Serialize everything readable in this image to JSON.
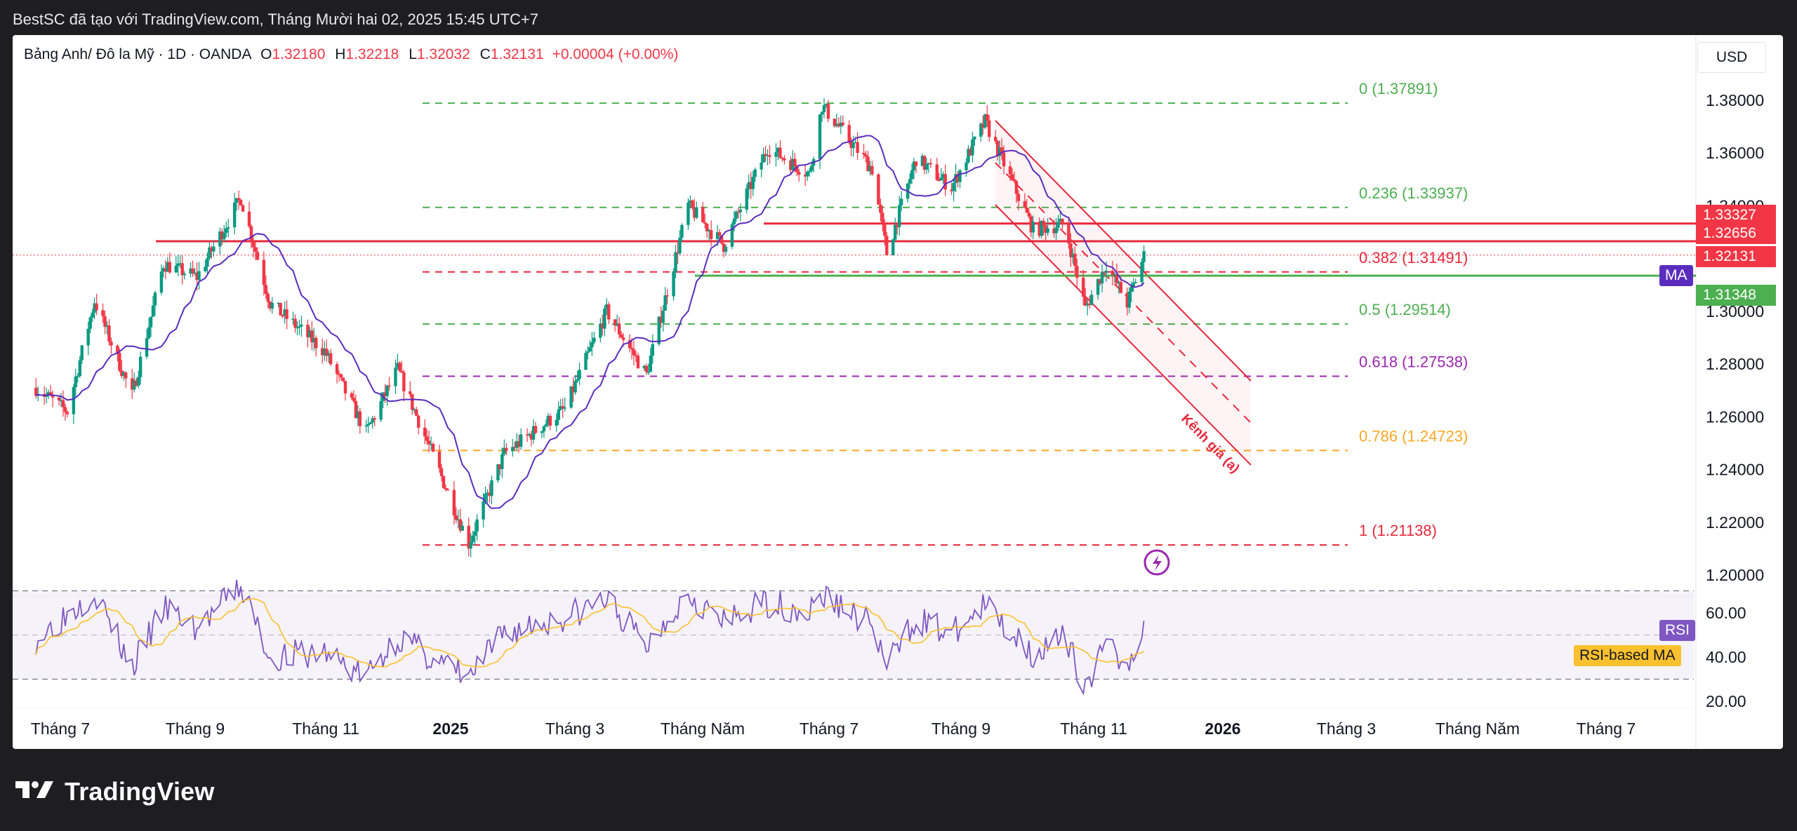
{
  "topbar": {
    "text": "BestSC đã tạo với TradingView.com, Tháng Mười hai 02, 2025 15:45 UTC+7"
  },
  "legend": {
    "symbol": "Bảng Anh/ Đô la Mỹ · 1D · OANDA",
    "o_label": "O",
    "o": "1.32180",
    "h_label": "H",
    "h": "1.32218",
    "l_label": "L",
    "l": "1.32032",
    "c_label": "C",
    "c": "1.32131",
    "change": "+0.00004 (+0.00%)"
  },
  "currency": "USD",
  "colors": {
    "up": "#089981",
    "down": "#f23645",
    "ma": "#5b2dbf",
    "rsi": "#7e57c2",
    "rsi_ma": "#fbc02d",
    "support": "#4caf50",
    "resistance": "#e8283b"
  },
  "price_tags": [
    {
      "label": "1.33327",
      "value": 1.33327,
      "color": "#f23645"
    },
    {
      "label": "1.32656",
      "value": 1.32656,
      "color": "#f23645"
    },
    {
      "label": "1.32131",
      "value": 1.32131,
      "color": "#f23645"
    },
    {
      "label": "1.31348",
      "value": 1.31348,
      "color": "#4caf50"
    }
  ],
  "ma_tag": "MA",
  "rsi_tag": "RSI",
  "rsi_ma_tag": "RSI-based MA",
  "channel_label": "Kênh giá (a)",
  "footer": {
    "brand": "TradingView"
  },
  "chart_data": {
    "type": "candlestick",
    "symbol": "GBP/USD",
    "timeframe": "1D",
    "y_ticks": [
      "1.38000",
      "1.36000",
      "1.34000",
      "1.32000",
      "1.30000",
      "1.28000",
      "1.26000",
      "1.24000",
      "1.22000",
      "1.20000"
    ],
    "y_tick_values": [
      1.38,
      1.36,
      1.34,
      1.32,
      1.3,
      1.28,
      1.26,
      1.24,
      1.22,
      1.2
    ],
    "x_ticks": [
      {
        "label": "Tháng 7",
        "bold": false
      },
      {
        "label": "Tháng 9",
        "bold": false
      },
      {
        "label": "Tháng 11",
        "bold": false
      },
      {
        "label": "2025",
        "bold": true
      },
      {
        "label": "Tháng 3",
        "bold": false
      },
      {
        "label": "Tháng Năm",
        "bold": false
      },
      {
        "label": "Tháng 7",
        "bold": false
      },
      {
        "label": "Tháng 9",
        "bold": false
      },
      {
        "label": "Tháng 11",
        "bold": false
      },
      {
        "label": "2026",
        "bold": true
      },
      {
        "label": "Tháng 3",
        "bold": false
      },
      {
        "label": "Tháng Năm",
        "bold": false
      },
      {
        "label": "Tháng 7",
        "bold": false
      }
    ],
    "price_path": [
      [
        "2024-06-20",
        1.271
      ],
      [
        "2024-07-05",
        1.262
      ],
      [
        "2024-07-18",
        1.304
      ],
      [
        "2024-08-05",
        1.268
      ],
      [
        "2024-08-20",
        1.318
      ],
      [
        "2024-09-05",
        1.313
      ],
      [
        "2024-09-26",
        1.343
      ],
      [
        "2024-10-10",
        1.303
      ],
      [
        "2024-11-05",
        1.285
      ],
      [
        "2024-11-25",
        1.254
      ],
      [
        "2024-12-10",
        1.278
      ],
      [
        "2025-01-13",
        1.212
      ],
      [
        "2025-01-30",
        1.246
      ],
      [
        "2025-02-28",
        1.263
      ],
      [
        "2025-03-20",
        1.3
      ],
      [
        "2025-04-08",
        1.276
      ],
      [
        "2025-04-28",
        1.34
      ],
      [
        "2025-05-15",
        1.325
      ],
      [
        "2025-06-05",
        1.362
      ],
      [
        "2025-06-25",
        1.352
      ],
      [
        "2025-07-01",
        1.378
      ],
      [
        "2025-07-25",
        1.354
      ],
      [
        "2025-08-01",
        1.322
      ],
      [
        "2025-08-15",
        1.358
      ],
      [
        "2025-09-01",
        1.347
      ],
      [
        "2025-09-17",
        1.372
      ],
      [
        "2025-10-10",
        1.331
      ],
      [
        "2025-10-25",
        1.333
      ],
      [
        "2025-11-04",
        1.301
      ],
      [
        "2025-11-14",
        1.318
      ],
      [
        "2025-11-24",
        1.303
      ],
      [
        "2025-12-02",
        1.321
      ]
    ],
    "fibonacci": [
      {
        "label": "0 (1.37891)",
        "value": 1.37891,
        "color": "#4caf50"
      },
      {
        "label": "0.236 (1.33937)",
        "value": 1.33937,
        "color": "#4caf50"
      },
      {
        "label": "0.382 (1.31491)",
        "value": 1.31491,
        "color": "#e8283b"
      },
      {
        "label": "0.5 (1.29514)",
        "value": 1.29514,
        "color": "#4caf50"
      },
      {
        "label": "0.618 (1.27538)",
        "value": 1.27538,
        "color": "#9c27b0"
      },
      {
        "label": "0.786 (1.24723)",
        "value": 1.24723,
        "color": "#f9a825"
      },
      {
        "label": "1 (1.21138)",
        "value": 1.21138,
        "color": "#e8283b"
      }
    ],
    "horizontal_lines": [
      {
        "value": 1.33327,
        "color": "#e8283b"
      },
      {
        "value": 1.32656,
        "color": "#e8283b"
      },
      {
        "value": 1.31348,
        "color": "#4caf50"
      }
    ],
    "rsi": {
      "y_ticks": [
        "60.00",
        "40.00",
        "20.00"
      ],
      "y_tick_values": [
        60,
        40,
        20
      ],
      "upper": 70,
      "lower": 30,
      "middle": 50,
      "path": [
        [
          "2024-06-20",
          48
        ],
        [
          "2024-07-18",
          70
        ],
        [
          "2024-08-05",
          35
        ],
        [
          "2024-08-20",
          62
        ],
        [
          "2024-09-05",
          53
        ],
        [
          "2024-09-26",
          72
        ],
        [
          "2024-10-10",
          40
        ],
        [
          "2024-11-05",
          42
        ],
        [
          "2024-11-25",
          31
        ],
        [
          "2024-12-10",
          49
        ],
        [
          "2025-01-13",
          30
        ],
        [
          "2025-01-30",
          51
        ],
        [
          "2025-02-28",
          58
        ],
        [
          "2025-03-20",
          66
        ],
        [
          "2025-04-08",
          45
        ],
        [
          "2025-04-28",
          70
        ],
        [
          "2025-05-15",
          55
        ],
        [
          "2025-06-05",
          65
        ],
        [
          "2025-06-25",
          60
        ],
        [
          "2025-07-01",
          68
        ],
        [
          "2025-07-25",
          55
        ],
        [
          "2025-08-01",
          35
        ],
        [
          "2025-08-15",
          58
        ],
        [
          "2025-09-01",
          50
        ],
        [
          "2025-09-17",
          63
        ],
        [
          "2025-10-10",
          42
        ],
        [
          "2025-10-25",
          48
        ],
        [
          "2025-11-04",
          28
        ],
        [
          "2025-11-14",
          44
        ],
        [
          "2025-11-24",
          38
        ],
        [
          "2025-12-02",
          53
        ]
      ]
    }
  }
}
